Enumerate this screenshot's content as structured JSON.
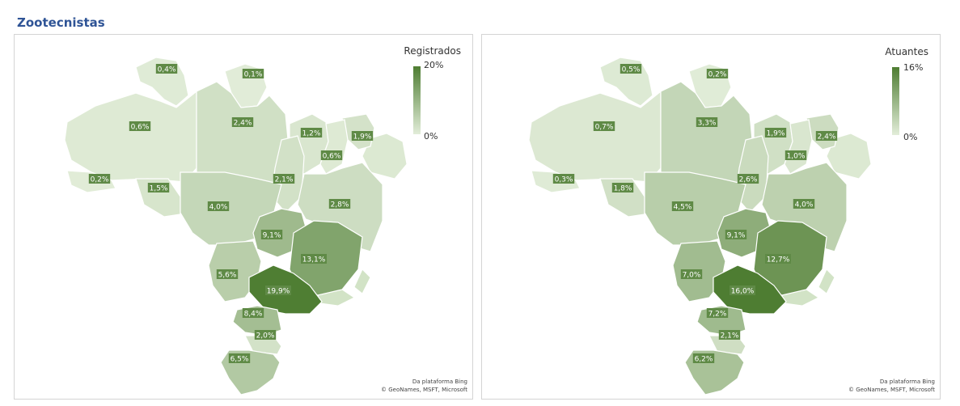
{
  "title": "Zootecnistas",
  "colors": {
    "light": "#e2edd9",
    "dark": "#4e7d32",
    "label_bg": "#5f8a46",
    "title": "#2f5496"
  },
  "attribution": {
    "line1": "Da plataforma Bing",
    "line2": "© GeoNames, MSFT, Microsoft"
  },
  "maps": [
    {
      "legend": {
        "title": "Registrados",
        "max": "20%",
        "min": "0%",
        "max_value": 20
      },
      "regions": [
        {
          "id": "RR",
          "label": "0,4%",
          "value": 0.4
        },
        {
          "id": "AP",
          "label": "0,1%",
          "value": 0.1
        },
        {
          "id": "AM",
          "label": "0,6%",
          "value": 0.6
        },
        {
          "id": "PA",
          "label": "2,4%",
          "value": 2.4
        },
        {
          "id": "MA",
          "label": "1,2%",
          "value": 1.2
        },
        {
          "id": "CE",
          "label": "1,9%",
          "value": 1.9
        },
        {
          "id": "PI",
          "label": "0,6%",
          "value": 0.6
        },
        {
          "id": "AC",
          "label": "0,2%",
          "value": 0.2
        },
        {
          "id": "RO",
          "label": "1,5%",
          "value": 1.5
        },
        {
          "id": "TO",
          "label": "2,1%",
          "value": 2.1
        },
        {
          "id": "MT",
          "label": "4,0%",
          "value": 4.0
        },
        {
          "id": "BA",
          "label": "2,8%",
          "value": 2.8
        },
        {
          "id": "GO",
          "label": "9,1%",
          "value": 9.1
        },
        {
          "id": "MG",
          "label": "13,1%",
          "value": 13.1
        },
        {
          "id": "MS",
          "label": "5,6%",
          "value": 5.6
        },
        {
          "id": "SP",
          "label": "19,9%",
          "value": 19.9
        },
        {
          "id": "PR",
          "label": "8,4%",
          "value": 8.4
        },
        {
          "id": "SC",
          "label": "2,0%",
          "value": 2.0
        },
        {
          "id": "RS",
          "label": "6,5%",
          "value": 6.5
        }
      ]
    },
    {
      "legend": {
        "title": "Atuantes",
        "max": "16%",
        "min": "0%",
        "max_value": 16
      },
      "regions": [
        {
          "id": "RR",
          "label": "0,5%",
          "value": 0.5
        },
        {
          "id": "AP",
          "label": "0,2%",
          "value": 0.2
        },
        {
          "id": "AM",
          "label": "0,7%",
          "value": 0.7
        },
        {
          "id": "PA",
          "label": "3,3%",
          "value": 3.3
        },
        {
          "id": "MA",
          "label": "1,9%",
          "value": 1.9
        },
        {
          "id": "CE",
          "label": "2,4%",
          "value": 2.4
        },
        {
          "id": "PI",
          "label": "1,0%",
          "value": 1.0
        },
        {
          "id": "AC",
          "label": "0,3%",
          "value": 0.3
        },
        {
          "id": "RO",
          "label": "1,8%",
          "value": 1.8
        },
        {
          "id": "TO",
          "label": "2,6%",
          "value": 2.6
        },
        {
          "id": "MT",
          "label": "4,5%",
          "value": 4.5
        },
        {
          "id": "BA",
          "label": "4,0%",
          "value": 4.0
        },
        {
          "id": "GO",
          "label": "9,1%",
          "value": 9.1
        },
        {
          "id": "MG",
          "label": "12,7%",
          "value": 12.7
        },
        {
          "id": "MS",
          "label": "7,0%",
          "value": 7.0
        },
        {
          "id": "SP",
          "label": "16,0%",
          "value": 16.0
        },
        {
          "id": "PR",
          "label": "7,2%",
          "value": 7.2
        },
        {
          "id": "SC",
          "label": "2,1%",
          "value": 2.1
        },
        {
          "id": "RS",
          "label": "6,2%",
          "value": 6.2
        }
      ]
    }
  ]
}
